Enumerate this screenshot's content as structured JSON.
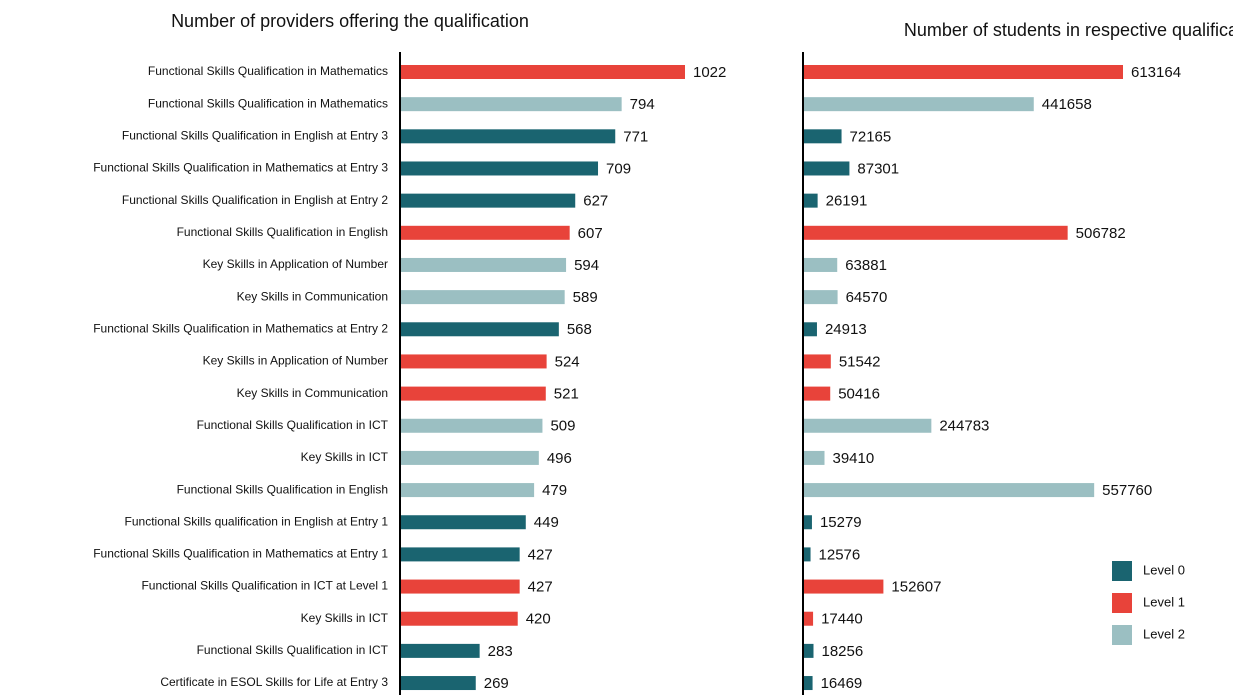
{
  "chart_data": [
    {
      "type": "bar",
      "orientation": "horizontal",
      "title": "Number of providers offering the qualification",
      "categories": [
        "Functional Skills Qualification in Mathematics",
        "Functional Skills Qualification in Mathematics",
        "Functional Skills Qualification in English at Entry 3",
        "Functional Skills Qualification in Mathematics at Entry 3",
        "Functional Skills Qualification in English at Entry 2",
        "Functional Skills Qualification in English",
        "Key Skills in Application of Number",
        "Key Skills in Communication",
        "Functional Skills Qualification in Mathematics at Entry 2",
        "Key Skills in Application of Number",
        "Key Skills in Communication",
        "Functional Skills Qualification in ICT",
        "Key Skills in ICT",
        "Functional Skills Qualification in English",
        "Functional Skills qualification in English at Entry 1",
        "Functional Skills Qualification in Mathematics at Entry 1",
        "Functional Skills Qualification in ICT at Level 1",
        "Key Skills in ICT",
        "Functional Skills Qualification in ICT",
        "Certificate in ESOL Skills for Life at Entry 3"
      ],
      "values": [
        1022,
        794,
        771,
        709,
        627,
        607,
        594,
        589,
        568,
        524,
        521,
        509,
        496,
        479,
        449,
        427,
        427,
        420,
        283,
        269
      ],
      "colors": [
        "#e8433a",
        "#9bbfc2",
        "#1a6470",
        "#1a6470",
        "#1a6470",
        "#e8433a",
        "#9bbfc2",
        "#9bbfc2",
        "#1a6470",
        "#e8433a",
        "#e8433a",
        "#9bbfc2",
        "#9bbfc2",
        "#9bbfc2",
        "#1a6470",
        "#1a6470",
        "#e8433a",
        "#e8433a",
        "#1a6470",
        "#1a6470"
      ]
    },
    {
      "type": "bar",
      "orientation": "horizontal",
      "title": "Number of students in respective qualifications",
      "values": [
        613164,
        441658,
        72165,
        87301,
        26191,
        506782,
        63881,
        64570,
        24913,
        51542,
        50416,
        244783,
        39410,
        557760,
        15279,
        12576,
        152607,
        17440,
        18256,
        16469
      ],
      "colors": [
        "#e8433a",
        "#9bbfc2",
        "#1a6470",
        "#1a6470",
        "#1a6470",
        "#e8433a",
        "#9bbfc2",
        "#9bbfc2",
        "#1a6470",
        "#e8433a",
        "#e8433a",
        "#9bbfc2",
        "#9bbfc2",
        "#9bbfc2",
        "#1a6470",
        "#1a6470",
        "#e8433a",
        "#e8433a",
        "#1a6470",
        "#1a6470"
      ],
      "legend": [
        {
          "name": "Level 0",
          "color": "#1a6470"
        },
        {
          "name": "Level 1",
          "color": "#e8433a"
        },
        {
          "name": "Level 2",
          "color": "#9bbfc2"
        }
      ]
    }
  ]
}
